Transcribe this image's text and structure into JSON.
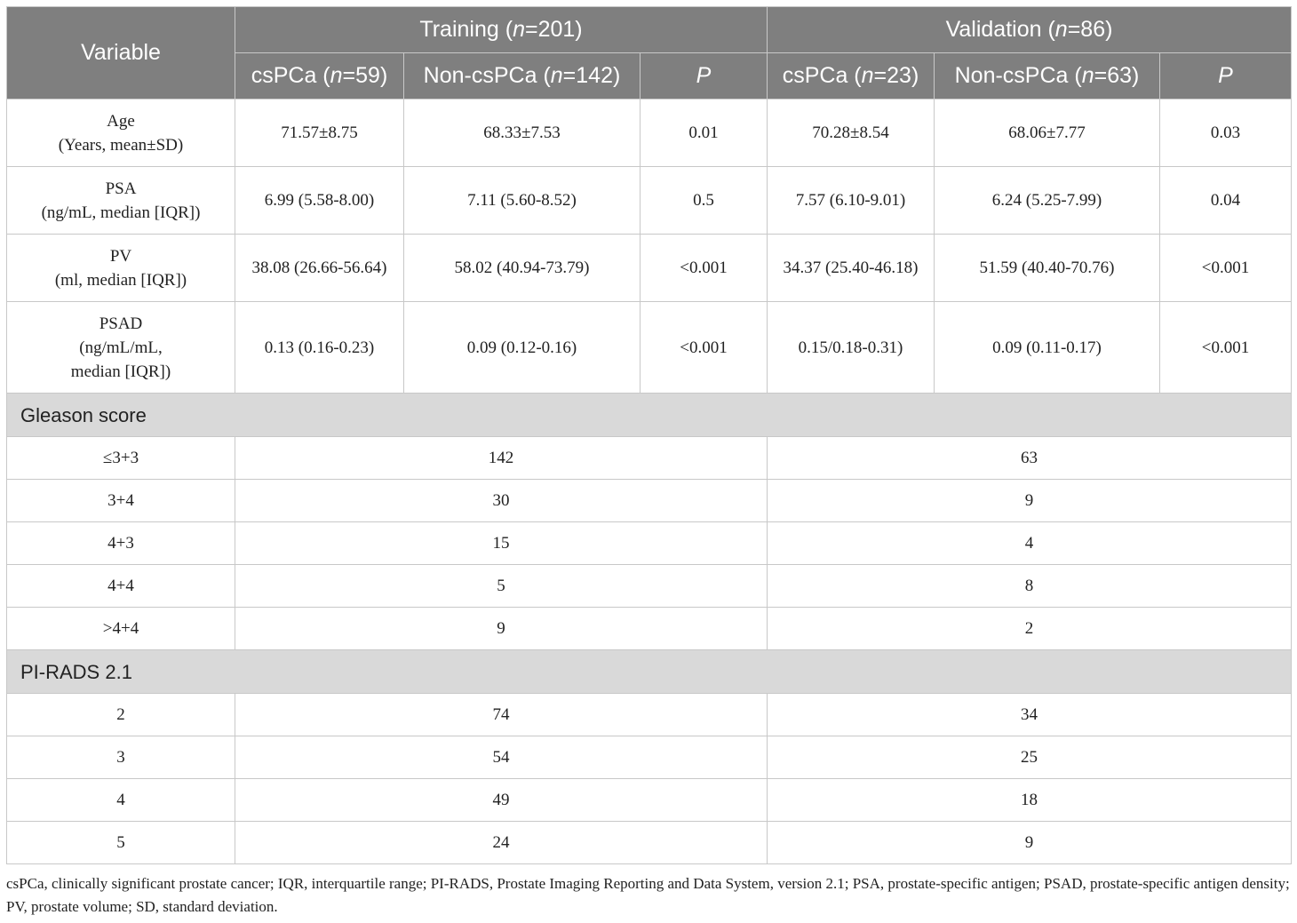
{
  "header": {
    "variable": "Variable",
    "training": "Training (n=201)",
    "validation": "Validation (n=86)",
    "sub": [
      "csPCa (n=59)",
      "Non-csPCa (n=142)",
      "P",
      "csPCa (n=23)",
      "Non-csPCa (n=63)",
      "P"
    ]
  },
  "rows": [
    {
      "label": [
        "Age",
        "(Years, mean±SD)"
      ],
      "values": [
        "71.57±8.75",
        "68.33±7.53",
        "0.01",
        "70.28±8.54",
        "68.06±7.77",
        "0.03"
      ]
    },
    {
      "label": [
        "PSA",
        "(ng/mL, median [IQR])"
      ],
      "values": [
        "6.99 (5.58-8.00)",
        "7.11 (5.60-8.52)",
        "0.5",
        "7.57 (6.10-9.01)",
        "6.24 (5.25-7.99)",
        "0.04"
      ]
    },
    {
      "label": [
        "PV",
        "(ml, median [IQR])"
      ],
      "values": [
        "38.08 (26.66-56.64)",
        "58.02 (40.94-73.79)",
        "<0.001",
        "34.37 (25.40-46.18)",
        "51.59 (40.40-70.76)",
        "<0.001"
      ]
    },
    {
      "label": [
        "PSAD",
        "(ng/mL/mL,",
        "median [IQR])"
      ],
      "values": [
        "0.13 (0.16-0.23)",
        "0.09 (0.12-0.16)",
        "<0.001",
        "0.15/0.18-0.31)",
        "0.09 (0.11-0.17)",
        "<0.001"
      ]
    }
  ],
  "gleason": {
    "title": "Gleason score",
    "rows": [
      {
        "label": "≤3+3",
        "training": "142",
        "validation": "63"
      },
      {
        "label": "3+4",
        "training": "30",
        "validation": "9"
      },
      {
        "label": "4+3",
        "training": "15",
        "validation": "4"
      },
      {
        "label": "4+4",
        "training": "5",
        "validation": "8"
      },
      {
        "label": ">4+4",
        "training": "9",
        "validation": "2"
      }
    ]
  },
  "pirads": {
    "title": "PI-RADS 2.1",
    "rows": [
      {
        "label": "2",
        "training": "74",
        "validation": "34"
      },
      {
        "label": "3",
        "training": "54",
        "validation": "25"
      },
      {
        "label": "4",
        "training": "49",
        "validation": "18"
      },
      {
        "label": "5",
        "training": "24",
        "validation": "9"
      }
    ]
  },
  "footnote": "csPCa, clinically significant prostate cancer; IQR, interquartile range; PI-RADS, Prostate Imaging Reporting and Data System, version 2.1; PSA, prostate-specific antigen; PSAD, prostate-specific antigen density; PV, prostate volume; SD, standard deviation."
}
